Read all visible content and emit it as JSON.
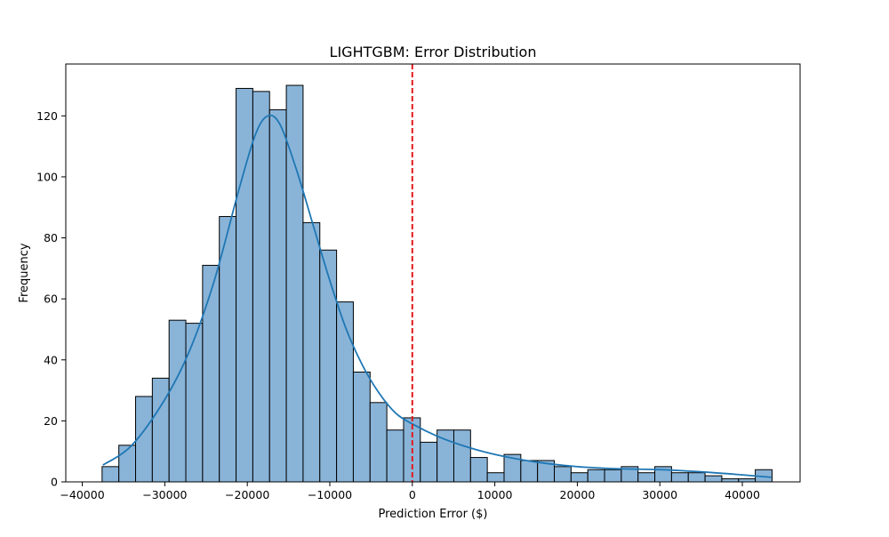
{
  "chart_data": {
    "type": "histogram",
    "title": "LIGHTGBM: Error Distribution",
    "xlabel": "Prediction Error ($)",
    "ylabel": "Frequency",
    "xlim": [
      -42000,
      47000
    ],
    "ylim": [
      0,
      137
    ],
    "x_ticks": [
      -40000,
      -30000,
      -20000,
      -10000,
      0,
      10000,
      20000,
      30000,
      40000
    ],
    "y_ticks": [
      0,
      20,
      40,
      60,
      80,
      100,
      120
    ],
    "grid": false,
    "legend": "none",
    "bin_start": -37600,
    "bin_width": 2030,
    "counts": [
      5,
      12,
      28,
      34,
      53,
      52,
      71,
      87,
      129,
      128,
      122,
      130,
      85,
      76,
      59,
      36,
      26,
      17,
      21,
      13,
      17,
      17,
      8,
      3,
      9,
      7,
      7,
      5,
      3,
      4,
      4,
      5,
      3,
      5,
      3,
      3,
      2,
      1,
      1,
      4
    ],
    "kde": {
      "x": [
        -37500,
        -34000,
        -30000,
        -27000,
        -24000,
        -21000,
        -19000,
        -17500,
        -16000,
        -14000,
        -12000,
        -10000,
        -8000,
        -6000,
        -4000,
        -2000,
        0,
        3000,
        6000,
        10000,
        15000,
        20000,
        25000,
        30000,
        35000,
        40000,
        43500
      ],
      "y": [
        5.5,
        12,
        27,
        43,
        66,
        96,
        114,
        120,
        117,
        102,
        84,
        66,
        50,
        38,
        29,
        22.5,
        19,
        15,
        12,
        9,
        6.5,
        5,
        4.3,
        4,
        3.3,
        2.3,
        1.5
      ]
    },
    "reference_line": {
      "x": 0,
      "style": "dashed"
    },
    "colors": {
      "bar_fill": "#89b4d8",
      "bar_edge": "#000000",
      "kde_line": "#1f77b4",
      "reference_line": "#e41a1c"
    }
  }
}
